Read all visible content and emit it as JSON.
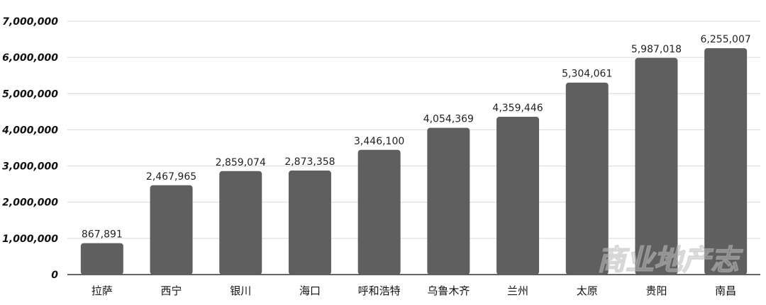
{
  "chart_data": {
    "type": "bar",
    "categories": [
      "拉萨",
      "西宁",
      "银川",
      "海口",
      "呼和浩特",
      "乌鲁木齐",
      "兰州",
      "太原",
      "贵阳",
      "南昌"
    ],
    "values": [
      867891,
      2467965,
      2859074,
      2873358,
      3446100,
      4054369,
      4359446,
      5304061,
      5987018,
      6255007
    ],
    "value_labels": [
      "867,891",
      "2,467,965",
      "2,859,074",
      "2,873,358",
      "3,446,100",
      "4,054,369",
      "4,359,446",
      "5,304,061",
      "5,987,018",
      "6,255,007"
    ],
    "ylim": [
      0,
      7000000
    ],
    "yticks": [
      0,
      1000000,
      2000000,
      3000000,
      4000000,
      5000000,
      6000000,
      7000000
    ],
    "ytick_labels": [
      "0",
      "1,000,000",
      "2,000,000",
      "3,000,000",
      "4,000,000",
      "5,000,000",
      "6,000,000",
      "7,000,000"
    ],
    "grid": true,
    "bar_color": "#5f5f5f",
    "grid_color": "#d9d9d9",
    "axis_color": "#333333"
  },
  "watermark": "商业地产志"
}
